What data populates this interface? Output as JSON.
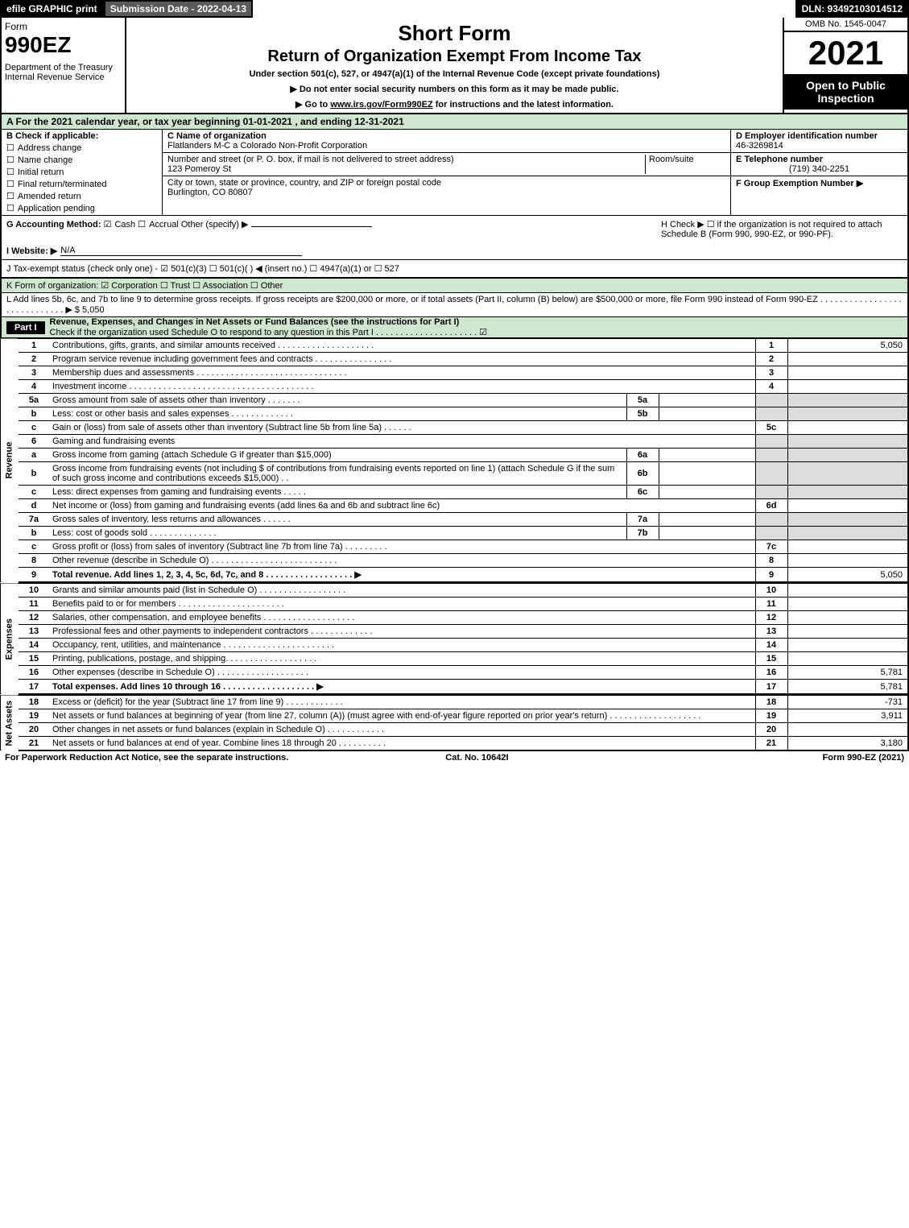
{
  "top": {
    "efile": "efile GRAPHIC print",
    "subdate": "Submission Date - 2022-04-13",
    "dln": "DLN: 93492103014512"
  },
  "header": {
    "form_label": "Form",
    "form_no": "990EZ",
    "dept": "Department of the Treasury\nInternal Revenue Service",
    "title_main": "Short Form",
    "title_sub": "Return of Organization Exempt From Income Tax",
    "under": "Under section 501(c), 527, or 4947(a)(1) of the Internal Revenue Code (except private foundations)",
    "arrow1": "▶ Do not enter social security numbers on this form as it may be made public.",
    "arrow2_pre": "▶ Go to ",
    "arrow2_link": "www.irs.gov/Form990EZ",
    "arrow2_post": " for instructions and the latest information.",
    "omb": "OMB No. 1545-0047",
    "year": "2021",
    "badge": "Open to Public Inspection"
  },
  "a": "A  For the 2021 calendar year, or tax year beginning 01-01-2021 , and ending 12-31-2021",
  "b": {
    "title": "B  Check if applicable:",
    "opts": [
      "Address change",
      "Name change",
      "Initial return",
      "Final return/terminated",
      "Amended return",
      "Application pending"
    ]
  },
  "c": {
    "name_label": "C Name of organization",
    "name": "Flatlanders M-C a Colorado Non-Profit Corporation",
    "street_label": "Number and street (or P. O. box, if mail is not delivered to street address)",
    "room_label": "Room/suite",
    "street": "123 Pomeroy St",
    "city_label": "City or town, state or province, country, and ZIP or foreign postal code",
    "city": "Burlington, CO  80807"
  },
  "d": {
    "ein_label": "D Employer identification number",
    "ein": "46-3269814",
    "tel_label": "E Telephone number",
    "tel": "(719) 340-2251",
    "grp_label": "F Group Exemption Number   ▶"
  },
  "g": {
    "label": "G Accounting Method:",
    "cash": "Cash",
    "accrual": "Accrual",
    "other": "Other (specify) ▶",
    "h": "H  Check ▶  ☐  if the organization is not required to attach Schedule B (Form 990, 990-EZ, or 990-PF)."
  },
  "i": {
    "label": "I Website: ▶",
    "val": "N/A"
  },
  "j": "J Tax-exempt status (check only one) -  ☑ 501(c)(3)  ☐ 501(c)(  ) ◀ (insert no.)  ☐ 4947(a)(1) or  ☐ 527",
  "k": "K Form of organization:   ☑ Corporation   ☐ Trust   ☐ Association   ☐ Other",
  "l": {
    "text": "L Add lines 5b, 6c, and 7b to line 9 to determine gross receipts. If gross receipts are $200,000 or more, or if total assets (Part II, column (B) below) are $500,000 or more, file Form 990 instead of Form 990-EZ  .  .  .  .  .  .  .  .  .  .  .  .  .  .  .  .  .  .  .  .  .  .  .  .  .  .  .  .  .  ▶ $ ",
    "val": "5,050"
  },
  "part1": {
    "badge": "Part I",
    "title": "Revenue, Expenses, and Changes in Net Assets or Fund Balances (see the instructions for Part I)",
    "check": "Check if the organization used Schedule O to respond to any question in this Part I  .  .  .  .  .  .  .  .  .  .  .  .  .  .  .  .  .  .  .  .  .  ☑"
  },
  "sections": {
    "revenue": "Revenue",
    "expenses": "Expenses",
    "netassets": "Net Assets"
  },
  "lines": [
    {
      "n": "1",
      "d": "Contributions, gifts, grants, and similar amounts received  .  .  .  .  .  .  .  .  .  .  .  .  .  .  .  .  .  .  .  .",
      "rn": "1",
      "rv": "5,050"
    },
    {
      "n": "2",
      "d": "Program service revenue including government fees and contracts  .  .  .  .  .  .  .  .  .  .  .  .  .  .  .  .",
      "rn": "2",
      "rv": ""
    },
    {
      "n": "3",
      "d": "Membership dues and assessments  .  .  .  .  .  .  .  .  .  .  .  .  .  .  .  .  .  .  .  .  .  .  .  .  .  .  .  .  .  .  .",
      "rn": "3",
      "rv": ""
    },
    {
      "n": "4",
      "d": "Investment income  .  .  .  .  .  .  .  .  .  .  .  .  .  .  .  .  .  .  .  .  .  .  .  .  .  .  .  .  .  .  .  .  .  .  .  .  .  .",
      "rn": "4",
      "rv": ""
    },
    {
      "n": "5a",
      "d": "Gross amount from sale of assets other than inventory  .  .  .  .  .  .  .",
      "mn": "5a",
      "mv": "",
      "shade": true
    },
    {
      "n": "b",
      "d": "Less: cost or other basis and sales expenses  .  .  .  .  .  .  .  .  .  .  .  .  .",
      "mn": "5b",
      "mv": "",
      "shade": true
    },
    {
      "n": "c",
      "d": "Gain or (loss) from sale of assets other than inventory (Subtract line 5b from line 5a)  .  .  .  .  .  .",
      "rn": "5c",
      "rv": ""
    },
    {
      "n": "6",
      "d": "Gaming and fundraising events",
      "shade": true
    },
    {
      "n": "a",
      "d": "Gross income from gaming (attach Schedule G if greater than $15,000)",
      "mn": "6a",
      "mv": "",
      "shade": true
    },
    {
      "n": "b",
      "d": "Gross income from fundraising events (not including $                          of contributions from fundraising events reported on line 1) (attach Schedule G if the sum of such gross income and contributions exceeds $15,000)     .   .",
      "mn": "6b",
      "mv": "",
      "shade": true
    },
    {
      "n": "c",
      "d": "Less: direct expenses from gaming and fundraising events  .  .  .  .  .",
      "mn": "6c",
      "mv": "",
      "shade": true
    },
    {
      "n": "d",
      "d": "Net income or (loss) from gaming and fundraising events (add lines 6a and 6b and subtract line 6c)",
      "rn": "6d",
      "rv": ""
    },
    {
      "n": "7a",
      "d": "Gross sales of inventory, less returns and allowances  .  .  .  .  .  .",
      "mn": "7a",
      "mv": "",
      "shade": true
    },
    {
      "n": "b",
      "d": "Less: cost of goods sold          .   .   .   .   .   .   .   .   .   .   .   .   .   .",
      "mn": "7b",
      "mv": "",
      "shade": true
    },
    {
      "n": "c",
      "d": "Gross profit or (loss) from sales of inventory (Subtract line 7b from line 7a)  .  .  .  .  .  .  .  .  .",
      "rn": "7c",
      "rv": ""
    },
    {
      "n": "8",
      "d": "Other revenue (describe in Schedule O) .  .  .  .  .  .  .  .  .  .  .  .  .  .  .  .  .  .  .  .  .  .  .  .  .  .",
      "rn": "8",
      "rv": ""
    },
    {
      "n": "9",
      "d": "Total revenue. Add lines 1, 2, 3, 4, 5c, 6d, 7c, and 8   .   .   .   .   .   .   .   .   .   .   .   .   .   .   .   .   .   .   ▶",
      "rn": "9",
      "rv": "5,050",
      "bold": true
    }
  ],
  "exp": [
    {
      "n": "10",
      "d": "Grants and similar amounts paid (list in Schedule O)  .  .  .  .  .  .  .  .  .  .  .  .  .  .  .  .  .  .",
      "rn": "10",
      "rv": ""
    },
    {
      "n": "11",
      "d": "Benefits paid to or for members       .   .   .   .   .   .   .   .   .   .   .   .   .   .   .   .   .   .   .   .   .   .",
      "rn": "11",
      "rv": ""
    },
    {
      "n": "12",
      "d": "Salaries, other compensation, and employee benefits .  .  .  .  .  .  .  .  .  .  .  .  .  .  .  .  .  .  .",
      "rn": "12",
      "rv": ""
    },
    {
      "n": "13",
      "d": "Professional fees and other payments to independent contractors  .  .  .  .  .  .  .  .  .  .  .  .  .",
      "rn": "13",
      "rv": ""
    },
    {
      "n": "14",
      "d": "Occupancy, rent, utilities, and maintenance .  .  .  .  .  .  .  .  .  .  .  .  .  .  .  .  .  .  .  .  .  .  .",
      "rn": "14",
      "rv": ""
    },
    {
      "n": "15",
      "d": "Printing, publications, postage, and shipping.   .   .   .   .   .   .   .   .   .   .   .   .   .   .   .   .   .   .",
      "rn": "15",
      "rv": ""
    },
    {
      "n": "16",
      "d": "Other expenses (describe in Schedule O)      .   .   .   .   .   .   .   .   .   .   .   .   .   .   .   .   .   .   .",
      "rn": "16",
      "rv": "5,781"
    },
    {
      "n": "17",
      "d": "Total expenses. Add lines 10 through 16       .   .   .   .   .   .   .   .   .   .   .   .   .   .   .   .   .   .   .   ▶",
      "rn": "17",
      "rv": "5,781",
      "bold": true
    }
  ],
  "net": [
    {
      "n": "18",
      "d": "Excess or (deficit) for the year (Subtract line 17 from line 9)         .   .   .   .   .   .   .   .   .   .   .   .",
      "rn": "18",
      "rv": "-731"
    },
    {
      "n": "19",
      "d": "Net assets or fund balances at beginning of year (from line 27, column (A)) (must agree with end-of-year figure reported on prior year's return) .   .   .   .   .   .   .   .   .   .   .   .   .   .   .   .   .   .   .",
      "rn": "19",
      "rv": "3,911"
    },
    {
      "n": "20",
      "d": "Other changes in net assets or fund balances (explain in Schedule O) .  .  .  .  .  .  .  .  .  .  .  .",
      "rn": "20",
      "rv": ""
    },
    {
      "n": "21",
      "d": "Net assets or fund balances at end of year. Combine lines 18 through 20 .   .   .   .   .   .   .   .   .   .",
      "rn": "21",
      "rv": "3,180"
    }
  ],
  "footer": {
    "left": "For Paperwork Reduction Act Notice, see the separate instructions.",
    "mid": "Cat. No. 10642I",
    "right": "Form 990-EZ (2021)"
  }
}
